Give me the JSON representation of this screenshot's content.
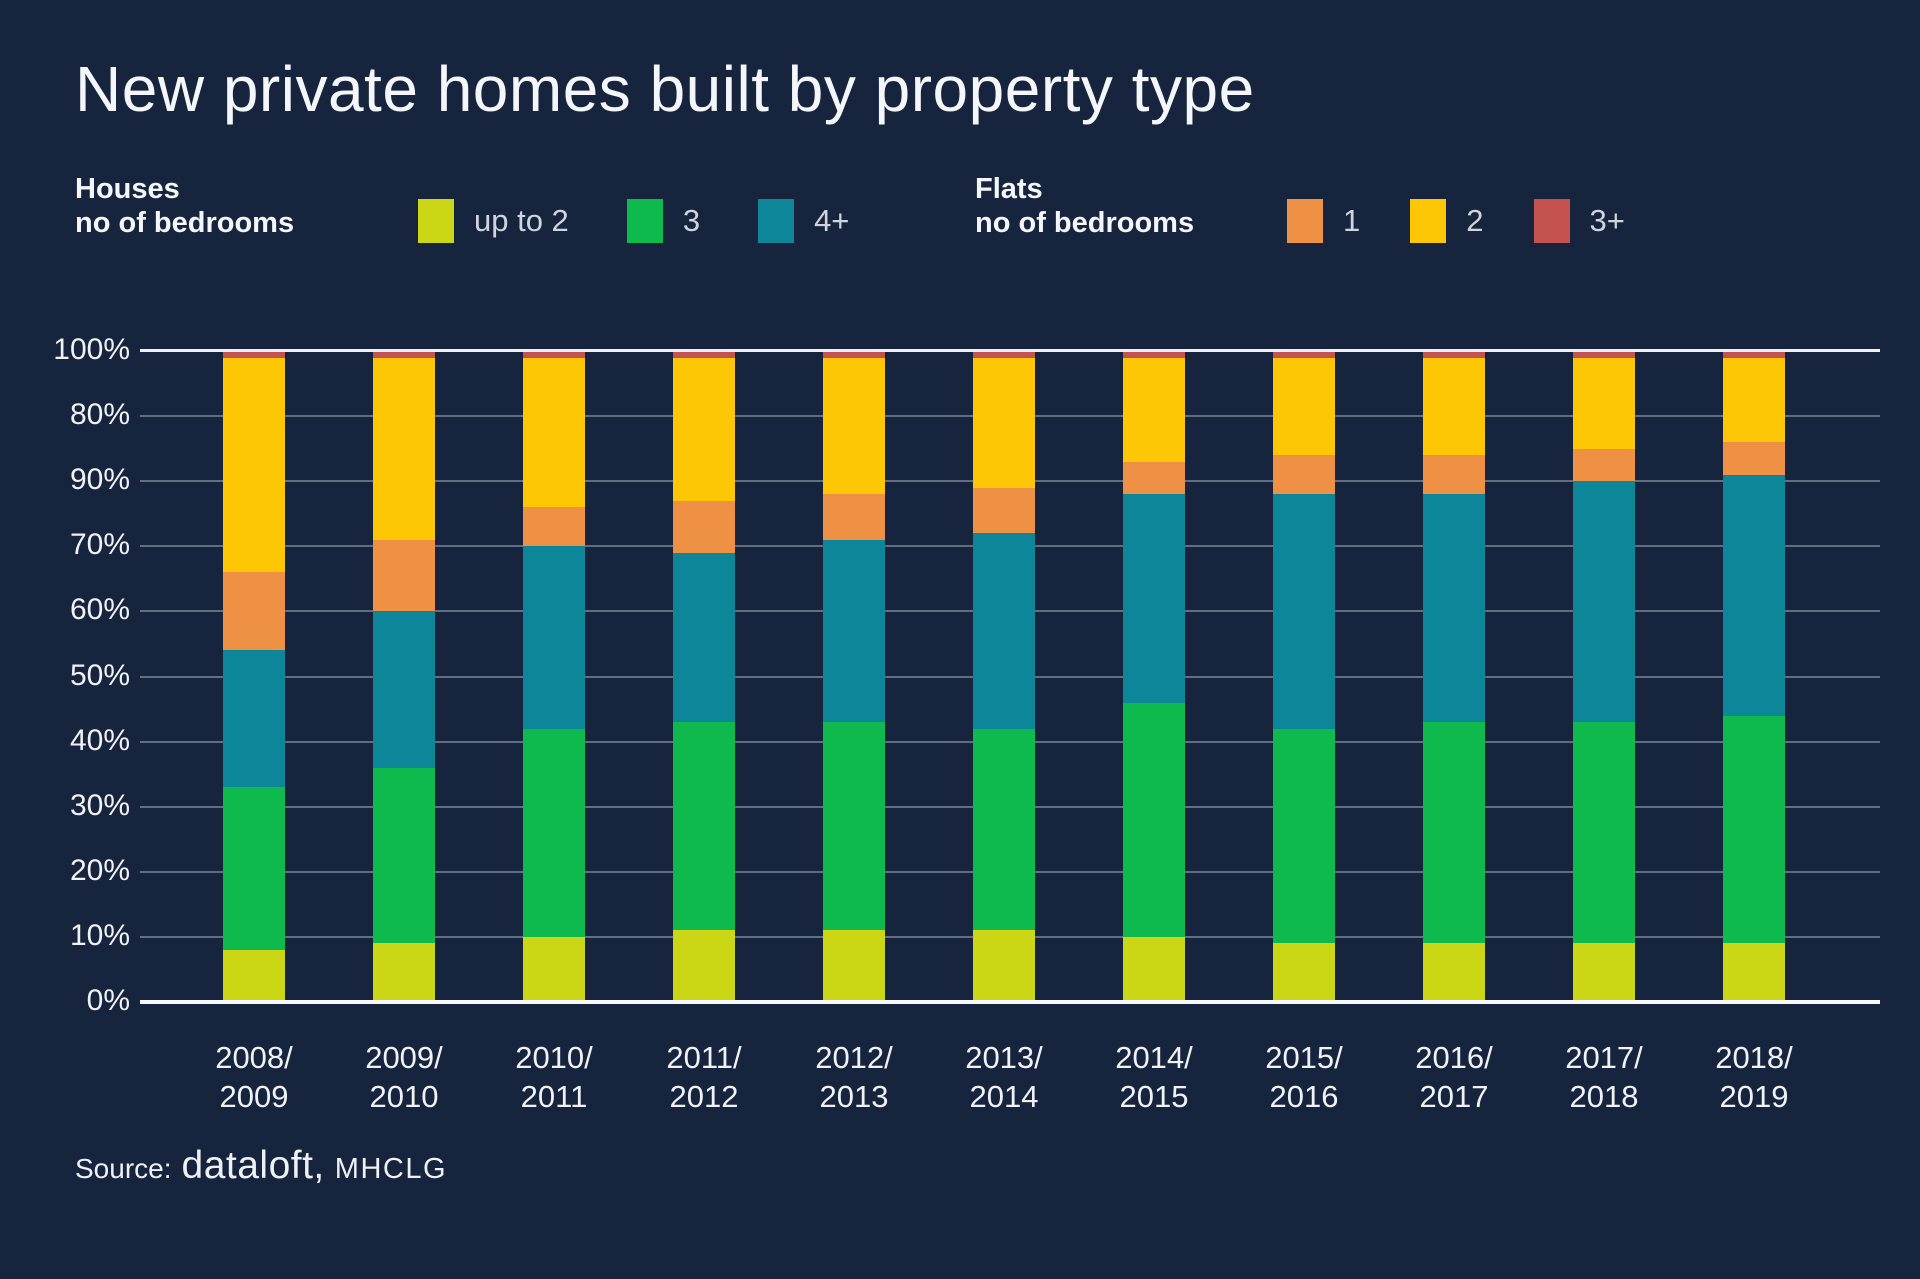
{
  "title": "New private homes built by property type",
  "colors": {
    "background": "#16243d",
    "text": "#f2f4f8",
    "gridline_minor": "rgba(190,200,216,0.45)",
    "axis_line": "#f7f9fc",
    "houses_up_to_2": "#cbd614",
    "houses_3": "#0eb94e",
    "houses_4plus": "#0e869a",
    "flats_1": "#ef9144",
    "flats_2": "#fdc705",
    "flats_3plus": "#c4524e"
  },
  "legend": {
    "houses": {
      "title_line1": "Houses",
      "title_line2": "no of bedrooms",
      "items": [
        {
          "label": "up to 2",
          "color": "#cbd614"
        },
        {
          "label": "3",
          "color": "#0eb94e"
        },
        {
          "label": "4+",
          "color": "#0e869a"
        }
      ]
    },
    "flats": {
      "title_line1": "Flats",
      "title_line2": "no of bedrooms",
      "items": [
        {
          "label": "1",
          "color": "#ef9144"
        },
        {
          "label": "2",
          "color": "#fdc705"
        },
        {
          "label": "3+",
          "color": "#c4524e"
        }
      ]
    }
  },
  "source": {
    "prefix": "Source:",
    "brand": "dataloft,",
    "suffix": "MHCLG"
  },
  "chart_data": {
    "type": "bar",
    "stacked": true,
    "unit": "percent of new private homes",
    "title": "New private homes built by property type",
    "categories": [
      "2008/2009",
      "2009/2010",
      "2010/2011",
      "2011/2012",
      "2012/2013",
      "2013/2014",
      "2014/2015",
      "2015/2016",
      "2016/2017",
      "2017/2018",
      "2018/2019"
    ],
    "series": [
      {
        "name": "Houses up to 2 bedrooms",
        "legend_label": "up to 2",
        "group": "houses",
        "color": "#cbd614",
        "values": [
          8,
          9,
          10,
          11,
          11,
          11,
          10,
          9,
          9,
          9,
          9
        ]
      },
      {
        "name": "Houses 3 bedrooms",
        "legend_label": "3",
        "group": "houses",
        "color": "#0eb94e",
        "values": [
          25,
          27,
          32,
          32,
          32,
          31,
          36,
          33,
          34,
          34,
          35
        ]
      },
      {
        "name": "Houses 4+ bedrooms",
        "legend_label": "4+",
        "group": "houses",
        "color": "#0e869a",
        "values": [
          21,
          24,
          28,
          26,
          28,
          30,
          32,
          36,
          35,
          37,
          37
        ]
      },
      {
        "name": "Flats 1 bedroom",
        "legend_label": "1",
        "group": "flats",
        "color": "#ef9144",
        "values": [
          12,
          11,
          6,
          8,
          7,
          7,
          5,
          6,
          6,
          5,
          5
        ]
      },
      {
        "name": "Flats 2 bedrooms",
        "legend_label": "2",
        "group": "flats",
        "color": "#fdc705",
        "values": [
          33,
          28,
          23,
          22,
          21,
          20,
          16,
          15,
          15,
          14,
          13
        ]
      },
      {
        "name": "Flats 3+ bedrooms",
        "legend_label": "3+",
        "group": "flats",
        "color": "#c4524e",
        "values": [
          1,
          1,
          1,
          1,
          1,
          1,
          1,
          1,
          1,
          1,
          1
        ]
      }
    ],
    "y_axis": {
      "range": [
        0,
        100
      ],
      "gridlines": true,
      "tick_labels_top_to_bottom": [
        "100%",
        "80%",
        "90%",
        "70%",
        "60%",
        "50%",
        "40%",
        "30%",
        "20%",
        "10%",
        "0%"
      ],
      "note": "80% and 90% tick labels appear swapped in the source graphic"
    },
    "legend_position": "top"
  }
}
